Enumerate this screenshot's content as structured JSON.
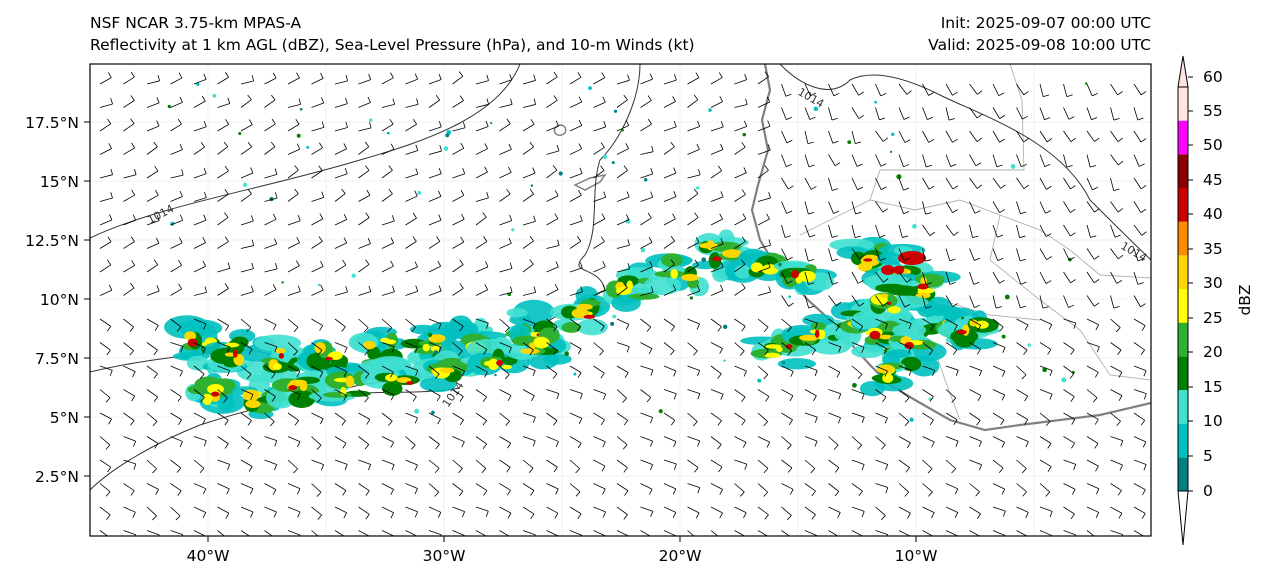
{
  "header": {
    "model": "NSF NCAR 3.75-km MPAS-A",
    "fields": "Reflectivity at 1 km AGL (dBZ), Sea-Level Pressure (hPa), and 10-m Winds (kt)",
    "init": "Init: 2025-09-07 00:00 UTC",
    "valid": "Valid: 2025-09-08 10:00 UTC"
  },
  "axes": {
    "lat_labels": [
      "17.5°N",
      "15°N",
      "12.5°N",
      "10°N",
      "7.5°N",
      "5°N",
      "2.5°N"
    ],
    "lon_labels": [
      "40°W",
      "30°W",
      "20°W",
      "10°W"
    ]
  },
  "isobar_labels": [
    "1014",
    "1014",
    "1014",
    "1014",
    "1014"
  ],
  "colorbar": {
    "label": "dBZ",
    "ticks": [
      "0",
      "5",
      "10",
      "15",
      "20",
      "25",
      "30",
      "35",
      "40",
      "45",
      "50",
      "55",
      "60"
    ],
    "colors": [
      "#008080",
      "#00c0c0",
      "#40e0d0",
      "#008000",
      "#30b030",
      "#ffff00",
      "#ffd700",
      "#ff8c00",
      "#cc0000",
      "#8b0000",
      "#ff00ff",
      "#ffe4e1"
    ]
  },
  "map": {
    "lat_range": [
      0,
      20
    ],
    "lon_range": [
      -45,
      0
    ],
    "colors": {
      "land_outline": "#808080",
      "isobar": "#333333",
      "barb": "#000000"
    }
  }
}
